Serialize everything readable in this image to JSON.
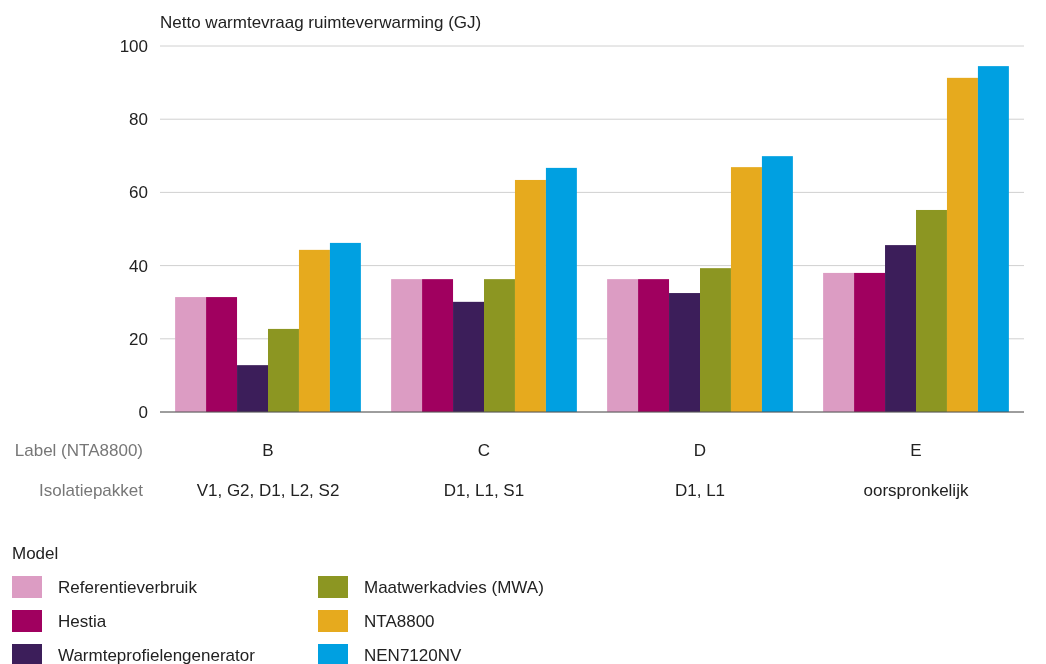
{
  "chart_data": {
    "type": "bar",
    "ylabel": "Netto warmtevraag ruimteverwarming (GJ)",
    "xlabel": "Label (NTA8800)",
    "categories": [
      "B",
      "C",
      "D",
      "E"
    ],
    "series": [
      {
        "name": "Referentieverbruik",
        "color": "#dc9cc3",
        "values": [
          31.4,
          36.3,
          36.3,
          38.0
        ]
      },
      {
        "name": "Hestia",
        "color": "#a0005f",
        "values": [
          31.4,
          36.3,
          36.3,
          38.0
        ]
      },
      {
        "name": "Warmteprofielengenerator",
        "color": "#3c1e5a",
        "values": [
          12.8,
          30.1,
          32.5,
          45.6
        ]
      },
      {
        "name": "Maatwerkadvies (MWA)",
        "color": "#8c9622",
        "values": [
          22.7,
          36.3,
          39.3,
          55.2
        ]
      },
      {
        "name": "NTA8800",
        "color": "#e6aa1e",
        "values": [
          44.3,
          63.4,
          66.9,
          91.3
        ]
      },
      {
        "name": "NEN7120NV",
        "color": "#00a0e1",
        "values": [
          46.2,
          66.7,
          69.9,
          94.5
        ]
      }
    ],
    "ylim": [
      0,
      100
    ],
    "yticks": [
      0,
      20,
      40,
      60,
      80,
      100
    ],
    "grid": "y",
    "legend": "bottom",
    "legend_title": "Model",
    "annotations": [
      "Isolatiepakket",
      "V1, G2, D1, L2, S2",
      "D1, L1, S1",
      "D1, L1",
      "oorspronkelijk"
    ]
  }
}
